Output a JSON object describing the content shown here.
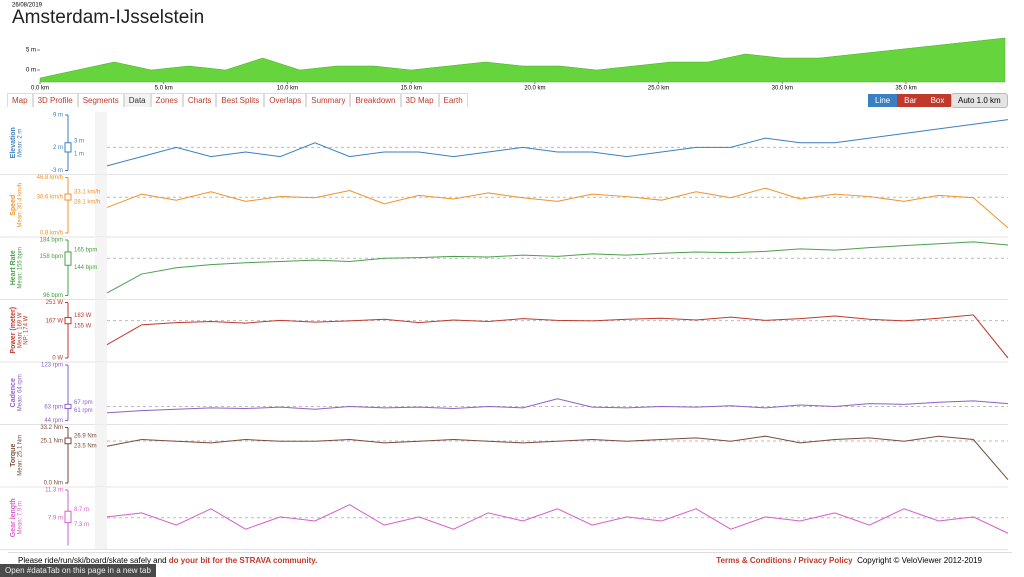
{
  "header": {
    "date": "26/08/2019",
    "title": "Amsterdam-IJsselstein"
  },
  "profile": {
    "ylim": [
      -3,
      9
    ],
    "yticks": [
      {
        "value": 0,
        "label": "0 m"
      },
      {
        "value": 5,
        "label": "5 m"
      }
    ],
    "xticks": [
      {
        "value": 0,
        "label": "0.0 km"
      },
      {
        "value": 5,
        "label": "5.0 km"
      },
      {
        "value": 10,
        "label": "10.0 km"
      },
      {
        "value": 15,
        "label": "15.0 km"
      },
      {
        "value": 20,
        "label": "20.0 km"
      },
      {
        "value": 25,
        "label": "25.0 km"
      },
      {
        "value": 30,
        "label": "30.0 km"
      },
      {
        "value": 35,
        "label": "35.0 km"
      }
    ],
    "color": "#66d43c"
  },
  "tabs": [
    "Map",
    "3D Profile",
    "Segments",
    "Data",
    "Zones",
    "Charts",
    "Best Splits",
    "Overlaps",
    "Summary",
    "Breakdown",
    "3D Map",
    "Earth"
  ],
  "active_tab": 3,
  "view_buttons": [
    "Line",
    "Bar",
    "Box"
  ],
  "interval": "Auto 1.0 km",
  "xlim": [
    0,
    39
  ],
  "x": [
    0,
    1.5,
    3,
    4.5,
    6,
    7.5,
    9,
    10.5,
    12,
    13.5,
    15,
    16.5,
    18,
    19.5,
    21,
    22.5,
    24,
    25.5,
    27,
    28.5,
    30,
    31.5,
    33,
    34.5,
    36,
    37.5,
    39
  ],
  "panels": [
    {
      "name": "Elevation",
      "stats": [
        "Mean: 2 m"
      ],
      "color": "#3a7fc1",
      "ylim": [
        -3,
        9
      ],
      "mean": 2,
      "yticks": [
        {
          "value": -3,
          "label": "-3 m"
        },
        {
          "value": 2,
          "label": "2 m"
        },
        {
          "value": 9,
          "label": "9 m"
        }
      ],
      "box": [
        {
          "value": 1,
          "label": "1 m"
        },
        {
          "value": 3,
          "label": "3 m"
        }
      ],
      "values": [
        -2,
        0,
        2,
        0,
        1,
        0,
        3,
        0,
        1,
        1,
        0,
        1,
        2,
        1,
        1,
        0,
        1,
        2,
        2,
        4,
        3,
        3,
        4,
        5,
        6,
        7,
        8
      ]
    },
    {
      "name": "Speed",
      "stats": [
        "Mean: 30.4 km/h"
      ],
      "color": "#f0922b",
      "ylim": [
        0.8,
        46.8
      ],
      "mean": 30.4,
      "yticks": [
        {
          "value": 0.8,
          "label": "0.8 km/h"
        },
        {
          "value": 30.6,
          "label": "30.6 km/h"
        },
        {
          "value": 46.8,
          "label": "46.8 km/h"
        }
      ],
      "box": [
        {
          "value": 28.1,
          "label": "28.1 km/h"
        },
        {
          "value": 33.1,
          "label": "33.1 km/h"
        }
      ],
      "values": [
        22,
        33,
        28,
        35,
        27,
        31,
        30,
        36,
        25,
        32,
        29,
        34,
        30,
        27,
        33,
        31,
        28,
        35,
        30,
        38,
        29,
        33,
        31,
        27,
        32,
        30,
        5
      ]
    },
    {
      "name": "Heart Rate",
      "stats": [
        "Mean: 155 bpm"
      ],
      "color": "#4aa04a",
      "ylim": [
        96,
        184
      ],
      "mean": 155,
      "yticks": [
        {
          "value": 96,
          "label": "96 bpm"
        },
        {
          "value": 158,
          "label": "158 bpm"
        },
        {
          "value": 184,
          "label": "184 bpm"
        }
      ],
      "box": [
        {
          "value": 144,
          "label": "144 bpm"
        },
        {
          "value": 165,
          "label": "165 bpm"
        }
      ],
      "values": [
        100,
        130,
        140,
        145,
        148,
        150,
        152,
        150,
        155,
        156,
        158,
        157,
        160,
        158,
        162,
        160,
        163,
        165,
        164,
        166,
        170,
        168,
        172,
        175,
        178,
        181,
        176
      ]
    },
    {
      "name": "Power (meter)",
      "stats": [
        "Mean: 169 W",
        "NP: 174 W"
      ],
      "color": "#c0392b",
      "ylim": [
        0,
        251
      ],
      "mean": 169,
      "yticks": [
        {
          "value": 0,
          "label": "0 W"
        },
        {
          "value": 167,
          "label": "167 W"
        },
        {
          "value": 251,
          "label": "251 W"
        }
      ],
      "box": [
        {
          "value": 155,
          "label": "155 W"
        },
        {
          "value": 183,
          "label": "183 W"
        }
      ],
      "values": [
        60,
        150,
        160,
        165,
        158,
        170,
        162,
        168,
        175,
        160,
        172,
        165,
        178,
        170,
        168,
        175,
        180,
        172,
        185,
        170,
        178,
        190,
        175,
        168,
        180,
        195,
        0
      ]
    },
    {
      "name": "Cadence",
      "stats": [
        "Mean: 64 rpm"
      ],
      "color": "#8e5fc9",
      "ylim": [
        44,
        123
      ],
      "mean": 64,
      "yticks": [
        {
          "value": 44,
          "label": "44 rpm"
        },
        {
          "value": 63,
          "label": "63 rpm"
        },
        {
          "value": 123,
          "label": "123 rpm"
        }
      ],
      "box": [
        {
          "value": 61,
          "label": "61 rpm"
        },
        {
          "value": 67,
          "label": "67 rpm"
        }
      ],
      "values": [
        55,
        58,
        60,
        62,
        61,
        63,
        60,
        64,
        62,
        63,
        61,
        64,
        62,
        75,
        63,
        62,
        64,
        63,
        65,
        62,
        66,
        64,
        68,
        67,
        70,
        72,
        68
      ]
    },
    {
      "name": "Torque",
      "stats": [
        "Mean: 25.1 Nm"
      ],
      "color": "#7a4a3a",
      "ylim": [
        0,
        33.2
      ],
      "mean": 25.1,
      "yticks": [
        {
          "value": 0,
          "label": "0.0 Nm"
        },
        {
          "value": 25.1,
          "label": "25.1 Nm"
        },
        {
          "value": 33.2,
          "label": "33.2 Nm"
        }
      ],
      "box": [
        {
          "value": 23.5,
          "label": "23.5 Nm"
        },
        {
          "value": 26.9,
          "label": "26.9 Nm"
        }
      ],
      "values": [
        22,
        26,
        25,
        24,
        26,
        25,
        25,
        26,
        24,
        25,
        26,
        25,
        24,
        25,
        26,
        25,
        26,
        27,
        25,
        28,
        24,
        26,
        27,
        25,
        28,
        26,
        2
      ]
    },
    {
      "name": "Gear length",
      "stats": [
        "Mean: 7.9 m"
      ],
      "color": "#d65fc7",
      "ylim": [
        4.5,
        11.3
      ],
      "mean": 7.9,
      "yticks": [
        {
          "value": 7.9,
          "label": "7.9 m"
        },
        {
          "value": 11.3,
          "label": "11.3 m"
        }
      ],
      "box": [
        {
          "value": 7.3,
          "label": "7.3 m"
        },
        {
          "value": 8.7,
          "label": "8.7 m"
        }
      ],
      "values": [
        8,
        8.5,
        7,
        9,
        6.5,
        8,
        7.5,
        9.5,
        7,
        8,
        6.5,
        8.5,
        7.5,
        9,
        7,
        8,
        7.5,
        9,
        6.5,
        8,
        7.5,
        8.5,
        7,
        9,
        7.5,
        8,
        6
      ]
    }
  ],
  "footer": {
    "safety": "Please ride/run/ski/board/skate safely and",
    "community": "do your bit for the STRAVA community.",
    "terms": "Terms & Conditions",
    "separator": "/",
    "privacy": "Privacy Policy",
    "copyright": "Copyright © VeloViewer 2012-2019"
  },
  "status": "Open #dataTab on this page in a new tab"
}
